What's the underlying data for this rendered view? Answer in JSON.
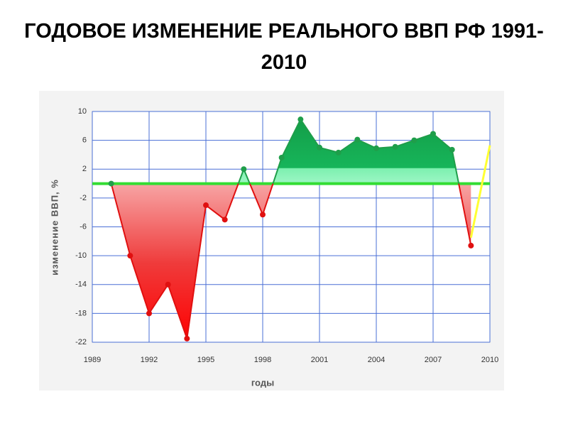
{
  "chart_data": {
    "type": "area",
    "title": "ГОДОВОЕ ИЗМЕНЕНИЕ РЕАЛЬНОГО ВВП РФ 1991-2010",
    "xlabel": "годы",
    "ylabel": "изменение ВВП, %",
    "x": [
      1990,
      1991,
      1992,
      1993,
      1994,
      1995,
      1996,
      1997,
      1998,
      1999,
      2000,
      2001,
      2002,
      2003,
      2004,
      2005,
      2006,
      2007,
      2008,
      2009
    ],
    "values": [
      0,
      -10,
      -18,
      -14,
      -21.5,
      -3,
      -5,
      2,
      -4.3,
      3.6,
      8.9,
      5,
      4.3,
      6.1,
      4.9,
      5.1,
      6,
      6.9,
      4.7,
      -8.6
    ],
    "positive_color": "#1f9e4a",
    "negative_color": "#e01010",
    "forecast": {
      "x": [
        2009,
        2010
      ],
      "values": [
        -7.5,
        5.3
      ],
      "color": "#ffff33"
    },
    "baseline_color": "#33dd33",
    "xlim": [
      1989,
      2010
    ],
    "xticks": [
      1989,
      1992,
      1995,
      1998,
      2001,
      2004,
      2007,
      2010
    ],
    "ylim": [
      -22,
      10
    ],
    "yticks": [
      -22,
      -18,
      -14,
      -10,
      -6,
      -2,
      2,
      6,
      10
    ],
    "grid": true,
    "grid_color": "#4a6fd6"
  }
}
